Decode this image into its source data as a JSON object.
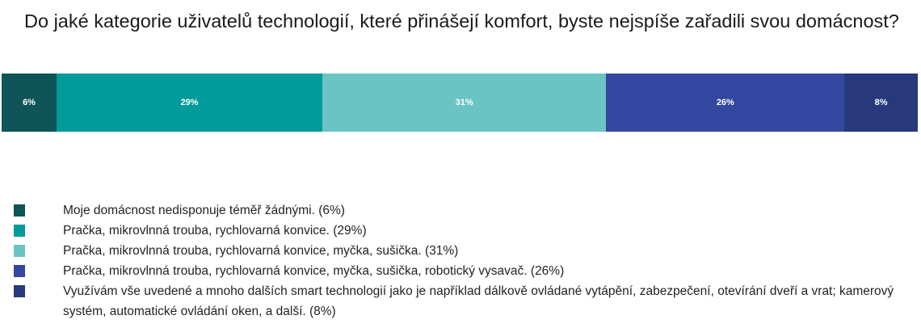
{
  "chart_data": {
    "type": "bar",
    "subtype": "100% stacked horizontal",
    "title": "Do jaké kategorie uživatelů technologií, které přinášejí komfort, byste nejspíše zařadili svou domácnost?",
    "series": [
      {
        "name": "Moje domácnost nedisponuje téměř žádnými. (6%)",
        "value": 6,
        "label": "6%",
        "color": "#0e5458"
      },
      {
        "name": "Pračka, mikrovlnná trouba, rychlovarná konvice. (29%)",
        "value": 29,
        "label": "29%",
        "color": "#019b9b"
      },
      {
        "name": "Pračka, mikrovlnná trouba, rychlovarná konvice, myčka, sušička. (31%)",
        "value": 31,
        "label": "31%",
        "color": "#6bc4c4"
      },
      {
        "name": "Pračka, mikrovlnná trouba, rychlovarná konvice, myčka, sušička, robotický vysavač. (26%)",
        "value": 26,
        "label": "26%",
        "color": "#3447a0"
      },
      {
        "name": "Využívám vše uvedené a mnoho dalších smart technologií jako je například dálkově ovládané vytápění, zabezpečení, otevírání dveří a vrat; kamerový systém, automatické ovládání oken, a další. (8%)",
        "value": 8,
        "label": "8%",
        "color": "#27397a"
      }
    ],
    "legend_position": "bottom-left"
  }
}
